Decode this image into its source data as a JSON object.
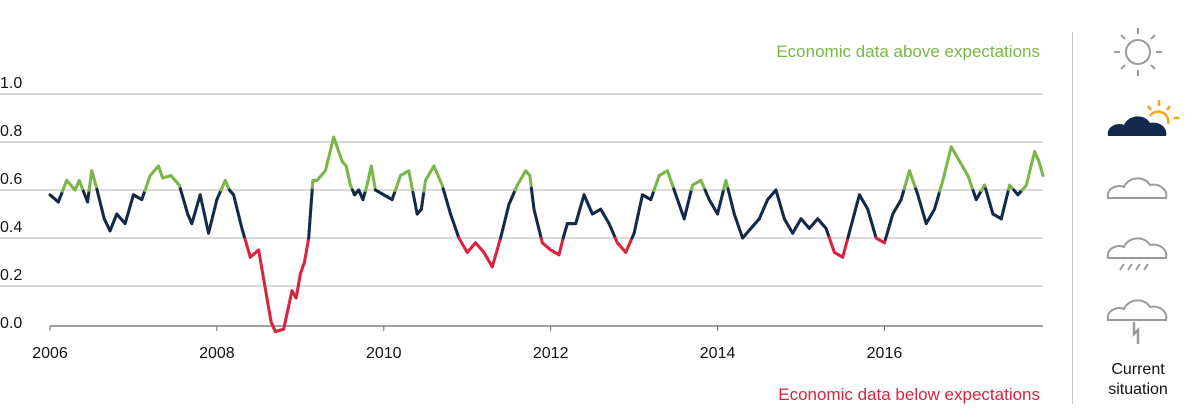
{
  "chart_data": {
    "type": "line",
    "title": "",
    "xlabel": "",
    "ylabel": "",
    "xlim": [
      2006,
      2017.9
    ],
    "ylim": [
      0,
      1.0
    ],
    "x_ticks": [
      "2006",
      "2008",
      "2010",
      "2012",
      "2014",
      "2016"
    ],
    "y_ticks": [
      "1.0",
      "0.8",
      "0.6",
      "0.4",
      "0.2",
      "0.0"
    ],
    "grid": "horizontal",
    "thresholds": {
      "upper": 0.6,
      "lower": 0.4
    },
    "annotations": {
      "above": "Economic data above expectations",
      "below": "Economic data below expectations"
    },
    "colors": {
      "above": "#7ab648",
      "neutral": "#13294b",
      "below": "#d8243f"
    },
    "series": [
      {
        "x": [
          2006.0,
          2006.1,
          2006.2,
          2006.3,
          2006.35,
          2006.45,
          2006.5,
          2006.55,
          2006.6,
          2006.65,
          2006.72,
          2006.8,
          2006.9,
          2007.0,
          2007.1,
          2007.2,
          2007.3,
          2007.35,
          2007.45,
          2007.55,
          2007.65,
          2007.7,
          2007.8,
          2007.9,
          2008.0,
          2008.1,
          2008.15,
          2008.2,
          2008.3,
          2008.4,
          2008.5,
          2008.6,
          2008.65,
          2008.7,
          2008.8,
          2008.85,
          2008.9,
          2008.95,
          2009.0,
          2009.05,
          2009.1,
          2009.15,
          2009.2,
          2009.3,
          2009.4,
          2009.5,
          2009.55,
          2009.6,
          2009.65,
          2009.7,
          2009.75,
          2009.8,
          2009.85,
          2009.9,
          2010.0,
          2010.1,
          2010.2,
          2010.3,
          2010.4,
          2010.45,
          2010.5,
          2010.6,
          2010.7,
          2010.8,
          2010.9,
          2011.0,
          2011.1,
          2011.2,
          2011.3,
          2011.4,
          2011.5,
          2011.55,
          2011.6,
          2011.7,
          2011.75,
          2011.8,
          2011.9,
          2012.0,
          2012.1,
          2012.15,
          2012.2,
          2012.3,
          2012.4,
          2012.45,
          2012.5,
          2012.6,
          2012.7,
          2012.8,
          2012.9,
          2013.0,
          2013.1,
          2013.2,
          2013.3,
          2013.4,
          2013.5,
          2013.6,
          2013.7,
          2013.8,
          2013.9,
          2014.0,
          2014.1,
          2014.2,
          2014.3,
          2014.4,
          2014.5,
          2014.6,
          2014.7,
          2014.8,
          2014.9,
          2015.0,
          2015.1,
          2015.2,
          2015.3,
          2015.4,
          2015.5,
          2015.6,
          2015.7,
          2015.8,
          2015.9,
          2016.0,
          2016.1,
          2016.2,
          2016.3,
          2016.4,
          2016.5,
          2016.6,
          2016.7,
          2016.8,
          2016.9,
          2017.0,
          2017.1,
          2017.2,
          2017.3,
          2017.4,
          2017.5,
          2017.6,
          2017.7,
          2017.8,
          2017.85,
          2017.9
        ],
        "values": [
          0.58,
          0.55,
          0.64,
          0.6,
          0.64,
          0.55,
          0.68,
          0.62,
          0.55,
          0.48,
          0.43,
          0.5,
          0.46,
          0.58,
          0.56,
          0.66,
          0.7,
          0.65,
          0.66,
          0.62,
          0.5,
          0.46,
          0.58,
          0.42,
          0.56,
          0.64,
          0.6,
          0.58,
          0.44,
          0.32,
          0.35,
          0.15,
          0.05,
          0.01,
          0.02,
          0.1,
          0.18,
          0.15,
          0.25,
          0.3,
          0.4,
          0.64,
          0.64,
          0.68,
          0.82,
          0.72,
          0.7,
          0.62,
          0.58,
          0.6,
          0.56,
          0.62,
          0.7,
          0.6,
          0.58,
          0.56,
          0.66,
          0.68,
          0.5,
          0.52,
          0.64,
          0.7,
          0.62,
          0.5,
          0.4,
          0.34,
          0.38,
          0.34,
          0.28,
          0.4,
          0.54,
          0.58,
          0.62,
          0.68,
          0.66,
          0.52,
          0.38,
          0.35,
          0.33,
          0.4,
          0.46,
          0.46,
          0.58,
          0.54,
          0.5,
          0.52,
          0.46,
          0.38,
          0.34,
          0.42,
          0.58,
          0.56,
          0.66,
          0.68,
          0.58,
          0.48,
          0.62,
          0.64,
          0.56,
          0.5,
          0.64,
          0.5,
          0.4,
          0.44,
          0.48,
          0.56,
          0.6,
          0.48,
          0.42,
          0.48,
          0.44,
          0.48,
          0.44,
          0.34,
          0.32,
          0.45,
          0.58,
          0.52,
          0.4,
          0.38,
          0.5,
          0.56,
          0.68,
          0.58,
          0.46,
          0.52,
          0.64,
          0.78,
          0.72,
          0.66,
          0.56,
          0.62,
          0.5,
          0.48,
          0.62,
          0.58,
          0.62,
          0.76,
          0.72,
          0.66
        ]
      }
    ]
  },
  "legend": {
    "icons": [
      "sun-icon",
      "cloud-sun-icon",
      "cloud-icon",
      "rain-cloud-icon",
      "storm-cloud-icon"
    ],
    "current_index": 1,
    "current_label_1": "Current",
    "current_label_2": "situation"
  }
}
